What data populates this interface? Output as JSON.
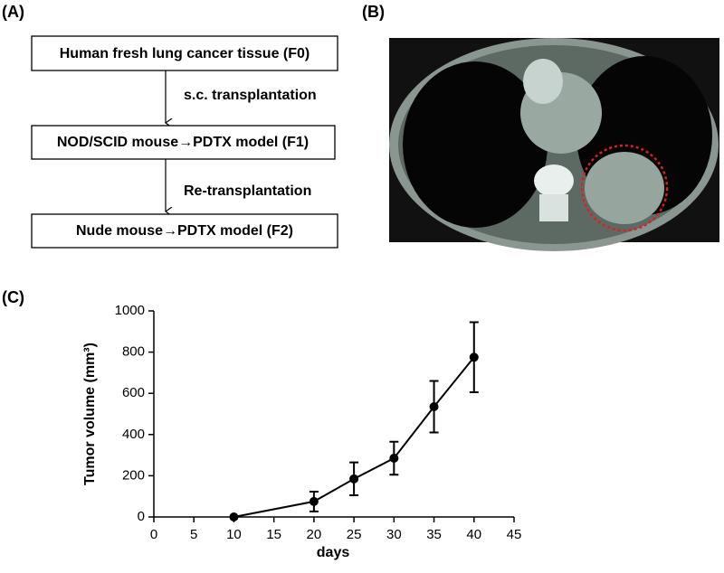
{
  "panel_labels": [
    "(A)",
    "(B)",
    "(C)"
  ],
  "flowchart": {
    "boxes": [
      "Human fresh lung cancer tissue (F0)",
      "NOD/SCID mouse→PDTX model (F1)",
      "Nude mouse→PDTX model (F2)"
    ],
    "arrows": [
      "s.c. transplantation",
      "Re-transplantation"
    ]
  },
  "chart_data": {
    "type": "line",
    "xlabel": "days",
    "ylabel": "Tumor volume (mm³)",
    "x": [
      10,
      20,
      25,
      30,
      35,
      40
    ],
    "values": [
      0,
      75,
      185,
      285,
      535,
      775
    ],
    "errors": [
      0,
      48,
      80,
      80,
      125,
      170
    ],
    "color": "#000000",
    "xlim": [
      0,
      45
    ],
    "xticks": [
      0,
      5,
      10,
      15,
      20,
      25,
      30,
      35,
      40,
      45
    ],
    "ylim": [
      0,
      1000
    ],
    "yticks": [
      0,
      200,
      400,
      600,
      800,
      1000
    ]
  }
}
